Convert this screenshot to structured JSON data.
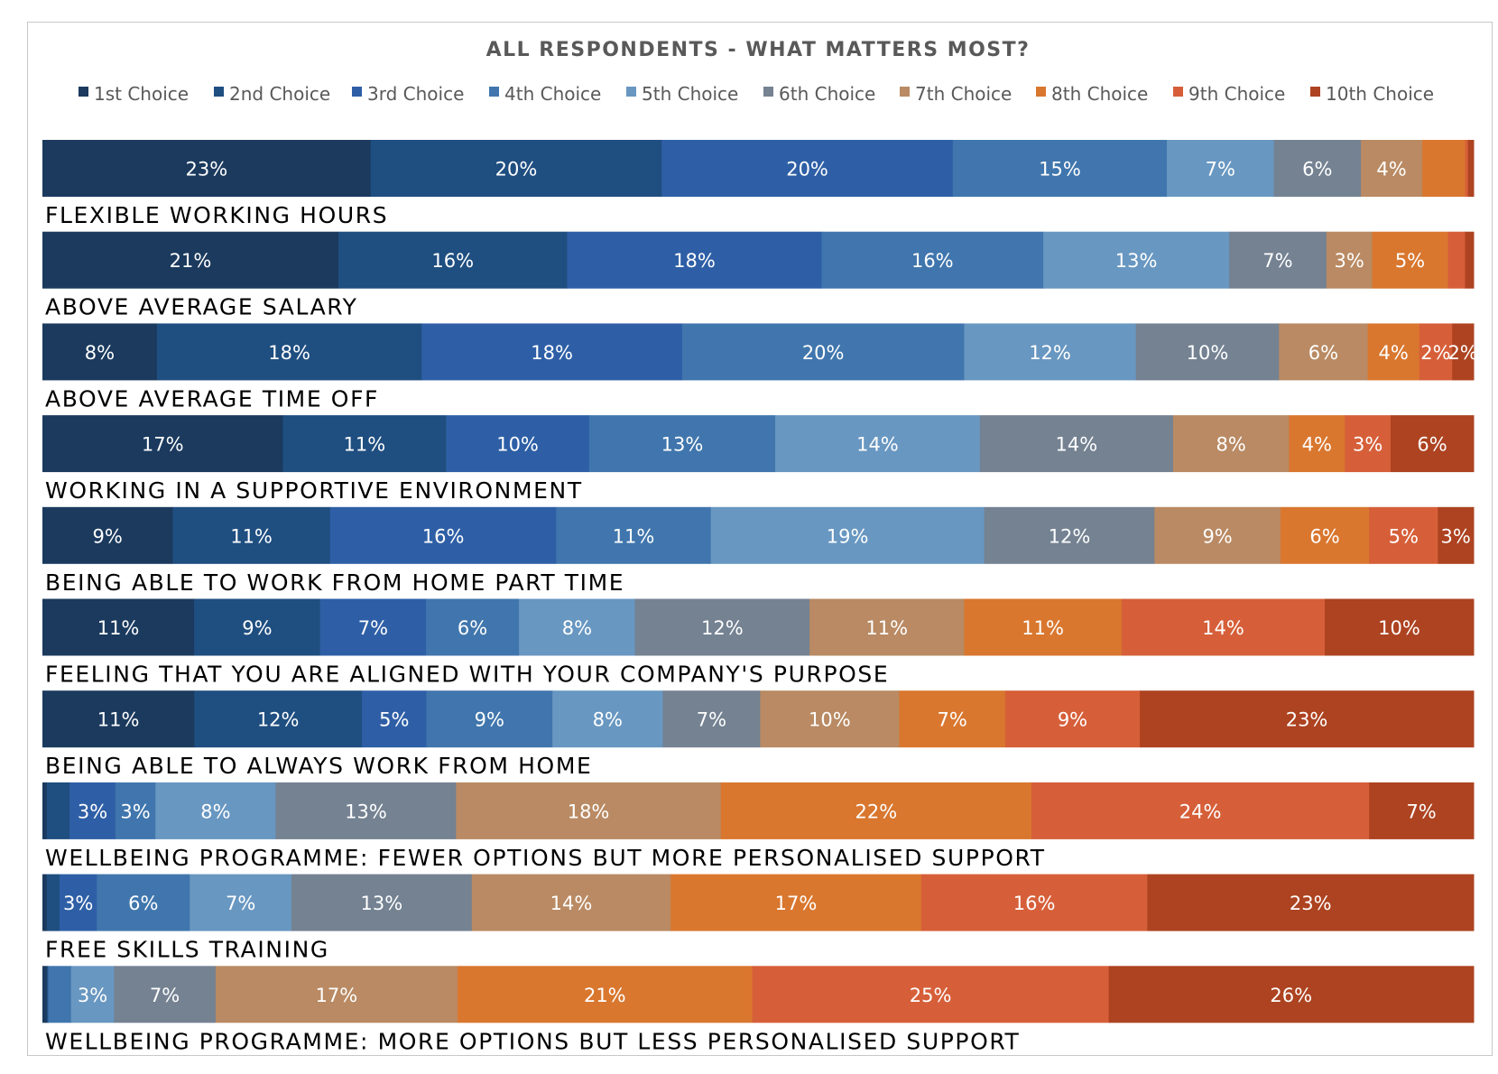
{
  "chart_data": {
    "type": "bar",
    "orientation": "horizontal",
    "stacked": true,
    "title": "ALL RESPONDENTS - WHAT MATTERS MOST?",
    "xlabel": "",
    "ylabel": "",
    "xlim": [
      0,
      100
    ],
    "grid": false,
    "legend_position": "top",
    "colors": [
      "#1b3a5e",
      "#1f4e80",
      "#2e5fa6",
      "#4076ad",
      "#6897c1",
      "#748292",
      "#b98a63",
      "#d9772f",
      "#d65f39",
      "#ad4320"
    ],
    "series": [
      {
        "name": "1st Choice"
      },
      {
        "name": "2nd Choice"
      },
      {
        "name": "3rd Choice"
      },
      {
        "name": "4th Choice"
      },
      {
        "name": "5th Choice"
      },
      {
        "name": "6th Choice"
      },
      {
        "name": "7th Choice"
      },
      {
        "name": "8th Choice"
      },
      {
        "name": "9th Choice"
      },
      {
        "name": "10th Choice"
      }
    ],
    "categories": [
      {
        "label": "FLEXIBLE WORKING HOURS",
        "values": [
          23,
          20.4,
          20.4,
          15,
          7.5,
          6.1,
          4.3,
          3,
          0.2,
          0.4
        ],
        "labels": [
          "23%",
          "20%",
          "20%",
          "15%",
          "7%",
          "6%",
          "4%",
          "",
          "",
          ""
        ]
      },
      {
        "label": "ABOVE AVERAGE SALARY",
        "values": [
          20.7,
          16,
          17.8,
          15.5,
          13,
          6.8,
          3.2,
          5.3,
          1.2,
          0.6
        ],
        "labels": [
          "21%",
          "16%",
          "18%",
          "16%",
          "13%",
          "7%",
          "3%",
          "5%",
          "",
          ""
        ]
      },
      {
        "label": "ABOVE AVERAGE TIME OFF",
        "values": [
          8,
          18.5,
          18.2,
          19.7,
          12,
          10,
          6.2,
          3.6,
          2.3,
          1.5
        ],
        "labels": [
          "8%",
          "18%",
          "18%",
          "20%",
          "12%",
          "10%",
          "6%",
          "4%",
          "2%",
          "2%"
        ]
      },
      {
        "label": "WORKING IN A SUPPORTIVE ENVIRONMENT",
        "values": [
          16.8,
          11.4,
          10,
          13,
          14.3,
          13.5,
          8.1,
          3.9,
          3.2,
          5.8
        ],
        "labels": [
          "17%",
          "11%",
          "10%",
          "13%",
          "14%",
          "14%",
          "8%",
          "4%",
          "3%",
          "6%"
        ]
      },
      {
        "label": "BEING ABLE TO WORK FROM HOME PART TIME",
        "values": [
          9.1,
          11,
          15.8,
          10.8,
          19.1,
          11.9,
          8.8,
          6.2,
          4.8,
          2.5
        ],
        "labels": [
          "9%",
          "11%",
          "16%",
          "11%",
          "19%",
          "12%",
          "9%",
          "6%",
          "5%",
          "3%"
        ]
      },
      {
        "label": "FEELING THAT YOU ARE ALIGNED WITH YOUR COMPANY'S PURPOSE",
        "values": [
          10.6,
          8.8,
          7.4,
          6.5,
          8.1,
          12.2,
          10.8,
          11,
          14.2,
          10.4
        ],
        "labels": [
          "11%",
          "9%",
          "7%",
          "6%",
          "8%",
          "12%",
          "11%",
          "11%",
          "14%",
          "10%"
        ]
      },
      {
        "label": "BEING ABLE TO ALWAYS WORK FROM HOME",
        "values": [
          10.6,
          11.7,
          4.5,
          8.8,
          7.7,
          6.8,
          9.7,
          7.4,
          9.4,
          23.3
        ],
        "labels": [
          "11%",
          "12%",
          "5%",
          "9%",
          "8%",
          "7%",
          "10%",
          "7%",
          "9%",
          "23%"
        ]
      },
      {
        "label": "WELLBEING PROGRAMME: FEWER OPTIONS BUT MORE PERSONALISED SUPPORT",
        "values": [
          0.3,
          1.6,
          3.2,
          2.8,
          8.4,
          12.6,
          18.5,
          21.7,
          23.6,
          7.3
        ],
        "labels": [
          "",
          "",
          "3%",
          "3%",
          "8%",
          "13%",
          "18%",
          "22%",
          "24%",
          "7%"
        ]
      },
      {
        "label": "FREE SKILLS TRAINING",
        "values": [
          0.3,
          0.9,
          2.6,
          6.5,
          7.1,
          12.6,
          13.9,
          17.5,
          15.8,
          22.8
        ],
        "labels": [
          "",
          "",
          "3%",
          "6%",
          "7%",
          "13%",
          "14%",
          "17%",
          "16%",
          "23%"
        ]
      },
      {
        "label": "WELLBEING PROGRAMME: MORE OPTIONS BUT LESS PERSONALISED SUPPORT",
        "values": [
          0.3,
          0.1,
          1.6,
          3,
          7.1,
          16.9,
          20.6,
          24.9,
          25.5
        ],
        "labels": [
          "",
          "",
          "",
          "3%",
          "7%",
          "17%",
          "21%",
          "25%",
          "26%"
        ],
        "series_index": [
          0,
          1,
          3,
          4,
          5,
          6,
          7,
          8,
          9
        ]
      }
    ]
  }
}
